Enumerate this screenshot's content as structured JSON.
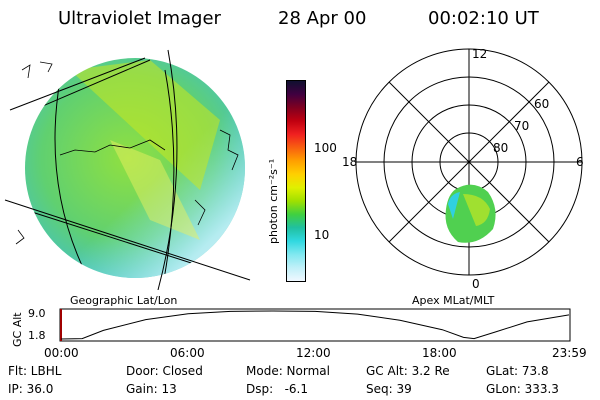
{
  "header": {
    "instrument": "Ultraviolet Imager",
    "date": "28 Apr 00",
    "time": "00:02:10 UT"
  },
  "colorbar": {
    "label": "photon cm⁻²s⁻¹",
    "ticks": [
      "100",
      "10"
    ],
    "colors": [
      "#101030",
      "#400040",
      "#800020",
      "#c00010",
      "#f02020",
      "#f86010",
      "#ffa000",
      "#ffd000",
      "#e0f000",
      "#a0e000",
      "#40d040",
      "#20c0a0",
      "#30d8e0",
      "#80e8f0",
      "#c0f0f8",
      "#f0f8ff"
    ]
  },
  "geo_panel": {
    "label": "Geographic Lat/Lon"
  },
  "apex_panel": {
    "label": "Apex MLat/MLT",
    "mlt_labels": {
      "top": "12",
      "bottom": "0",
      "left": "18",
      "right": "6"
    },
    "mlat_labels": [
      "60",
      "70",
      "80"
    ]
  },
  "altitude_plot": {
    "ylabel": "GC Alt",
    "yticks": [
      "9.0",
      "1.8"
    ],
    "xticks": [
      "00:00",
      "06:00",
      "12:00",
      "18:00",
      "23:59"
    ],
    "series": [
      {
        "x": 0.0,
        "y": 1.8
      },
      {
        "x": 1.0,
        "y": 1.9
      },
      {
        "x": 2.0,
        "y": 4.0
      },
      {
        "x": 4.0,
        "y": 6.8
      },
      {
        "x": 6.0,
        "y": 8.3
      },
      {
        "x": 8.0,
        "y": 8.9
      },
      {
        "x": 10.0,
        "y": 9.0
      },
      {
        "x": 12.0,
        "y": 8.9
      },
      {
        "x": 14.0,
        "y": 8.2
      },
      {
        "x": 16.0,
        "y": 6.6
      },
      {
        "x": 18.0,
        "y": 4.2
      },
      {
        "x": 19.0,
        "y": 2.2
      },
      {
        "x": 19.5,
        "y": 1.9
      },
      {
        "x": 20.5,
        "y": 3.6
      },
      {
        "x": 22.0,
        "y": 6.2
      },
      {
        "x": 23.98,
        "y": 8.0
      }
    ],
    "ylim": [
      1.8,
      9.0
    ],
    "xlim": [
      0,
      23.98
    ]
  },
  "footer": {
    "flt": "Flt: LBHL",
    "ip": "IP: 36.0",
    "door": "Door: Closed",
    "gain": "Gain: 13",
    "mode": "Mode: Normal",
    "dsp": "Dsp:   -6.1",
    "gcalt": "GC Alt: 3.2 Re",
    "seq": "Seq: 39",
    "glat": "GLat: 73.8",
    "glon": "GLon: 333.3"
  }
}
